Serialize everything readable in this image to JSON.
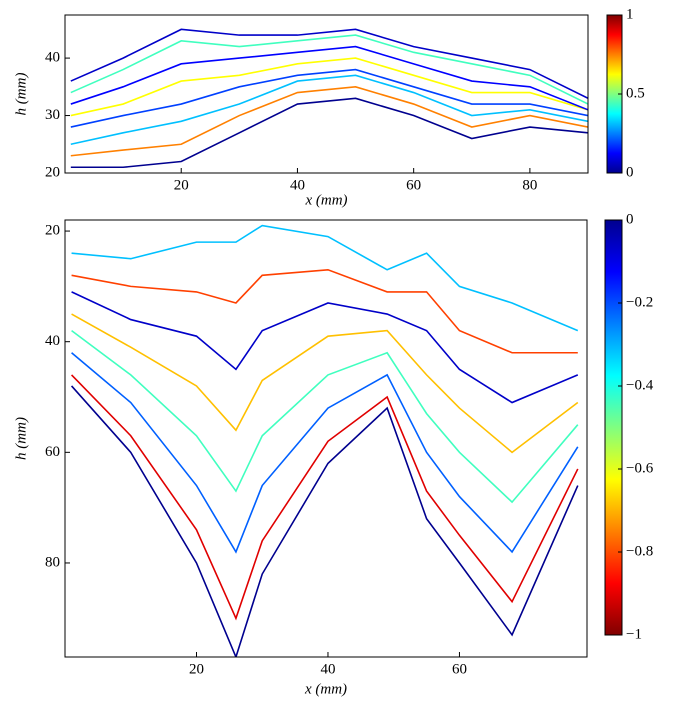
{
  "chart_data": [
    {
      "type": "line",
      "xlabel": "x (mm)",
      "ylabel": "h (mm)",
      "xlim": [
        0,
        90
      ],
      "xticks": [
        20,
        40,
        60,
        80
      ],
      "ylim": [
        20,
        47.5
      ],
      "yticks": [
        20,
        30,
        40
      ],
      "y_reversed": false,
      "colormap": "jet",
      "clim": [
        0,
        1
      ],
      "cticks": [
        0,
        0.5,
        1
      ],
      "x": [
        1,
        10,
        20,
        30,
        40,
        50,
        60,
        70,
        80,
        90
      ],
      "series": [
        {
          "color": "#00008f",
          "values": [
            21,
            21,
            22,
            27,
            32,
            33,
            30,
            26,
            28,
            27
          ]
        },
        {
          "color": "#ff8000",
          "values": [
            23,
            24,
            25,
            30,
            34,
            35,
            32,
            28,
            30,
            28
          ]
        },
        {
          "color": "#00c0ff",
          "values": [
            25,
            27,
            29,
            32,
            36,
            37,
            34,
            30,
            31,
            29
          ]
        },
        {
          "color": "#0040ff",
          "values": [
            28,
            30,
            32,
            35,
            37,
            38,
            35,
            32,
            32,
            30
          ]
        },
        {
          "color": "#ffff00",
          "values": [
            30,
            32,
            36,
            37,
            39,
            40,
            37,
            34,
            34,
            31
          ]
        },
        {
          "color": "#0000ff",
          "values": [
            32,
            35,
            39,
            40,
            41,
            42,
            39,
            36,
            35,
            31
          ]
        },
        {
          "color": "#40ffbf",
          "values": [
            34,
            38,
            43,
            42,
            43,
            44,
            41,
            39,
            37,
            32
          ]
        },
        {
          "color": "#0000c8",
          "values": [
            36,
            40,
            45,
            44,
            44,
            45,
            42,
            40,
            38,
            33
          ]
        }
      ]
    },
    {
      "type": "line",
      "xlabel": "x (mm)",
      "ylabel": "h (mm)",
      "xlim": [
        0,
        79.4
      ],
      "xticks": [
        20,
        40,
        60
      ],
      "ylim": [
        18,
        97
      ],
      "yticks": [
        20,
        40,
        60,
        80
      ],
      "y_reversed": true,
      "colormap": "jet_r",
      "clim": [
        -1,
        0
      ],
      "cticks": [
        0,
        {
          "value": -0.2,
          "label": "−0.2"
        },
        {
          "value": -0.4,
          "label": "−0.4"
        },
        {
          "value": -0.6,
          "label": "−0.6"
        },
        {
          "value": -0.8,
          "label": "−0.8"
        },
        {
          "value": -1,
          "label": "−1"
        }
      ],
      "x": [
        1,
        10,
        20,
        26,
        30,
        40,
        49,
        55,
        60,
        68,
        78
      ],
      "series": [
        {
          "color": "#00c0ff",
          "values": [
            24,
            25,
            22,
            22,
            19,
            21,
            27,
            24,
            30,
            33,
            38
          ]
        },
        {
          "color": "#ff4000",
          "values": [
            28,
            30,
            31,
            33,
            28,
            27,
            31,
            31,
            38,
            42,
            42
          ]
        },
        {
          "color": "#0000c8",
          "values": [
            31,
            36,
            39,
            45,
            38,
            33,
            35,
            38,
            45,
            51,
            46
          ]
        },
        {
          "color": "#ffc000",
          "values": [
            35,
            41,
            48,
            56,
            47,
            39,
            38,
            46,
            52,
            60,
            51
          ]
        },
        {
          "color": "#40ffbf",
          "values": [
            38,
            46,
            57,
            67,
            57,
            46,
            42,
            53,
            60,
            69,
            55
          ]
        },
        {
          "color": "#0060ff",
          "values": [
            42,
            51,
            66,
            78,
            66,
            52,
            46,
            60,
            68,
            78,
            59
          ]
        },
        {
          "color": "#e00000",
          "values": [
            46,
            57,
            74,
            90,
            76,
            58,
            50,
            67,
            75,
            87,
            63
          ]
        },
        {
          "color": "#00008f",
          "values": [
            48,
            60,
            80,
            97,
            82,
            62,
            52,
            72,
            80,
            93,
            66
          ]
        }
      ]
    }
  ]
}
